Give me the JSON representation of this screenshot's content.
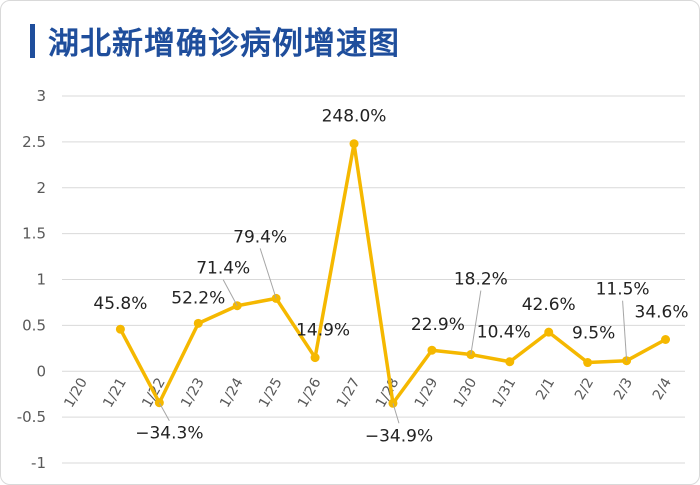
{
  "colors": {
    "title": "#1f4e9c",
    "line": "#f5b800",
    "grid": "#d9d9d9",
    "text": "#222222",
    "tick": "#595959"
  },
  "chart_data": {
    "type": "line",
    "title": "湖北新增确诊病例增速图",
    "xlabel": "",
    "ylabel": "",
    "categories": [
      "1/20",
      "1/21",
      "1/22",
      "1/23",
      "1/24",
      "1/25",
      "1/26",
      "1/27",
      "1/28",
      "1/29",
      "1/30",
      "1/31",
      "2/1",
      "2/2",
      "2/3",
      "2/4"
    ],
    "y_ticks": [
      "3",
      "2.5",
      "2",
      "1.5",
      "1",
      "0.5",
      "0",
      "-0.5",
      "-1"
    ],
    "ylim": [
      -1,
      3
    ],
    "grid": true,
    "legend": "none",
    "series": [
      {
        "values": [
          null,
          0.458,
          -0.343,
          0.522,
          0.714,
          0.794,
          0.149,
          2.48,
          -0.349,
          0.229,
          0.182,
          0.104,
          0.426,
          0.095,
          0.115,
          0.346
        ],
        "labels": [
          "",
          "45.8%",
          "−34.3%",
          "52.2%",
          "71.4%",
          "79.4%",
          "14.9%",
          "248.0%",
          "−34.9%",
          "22.9%",
          "18.2%",
          "10.4%",
          "42.6%",
          "9.5%",
          "11.5%",
          "34.6%"
        ]
      }
    ]
  }
}
